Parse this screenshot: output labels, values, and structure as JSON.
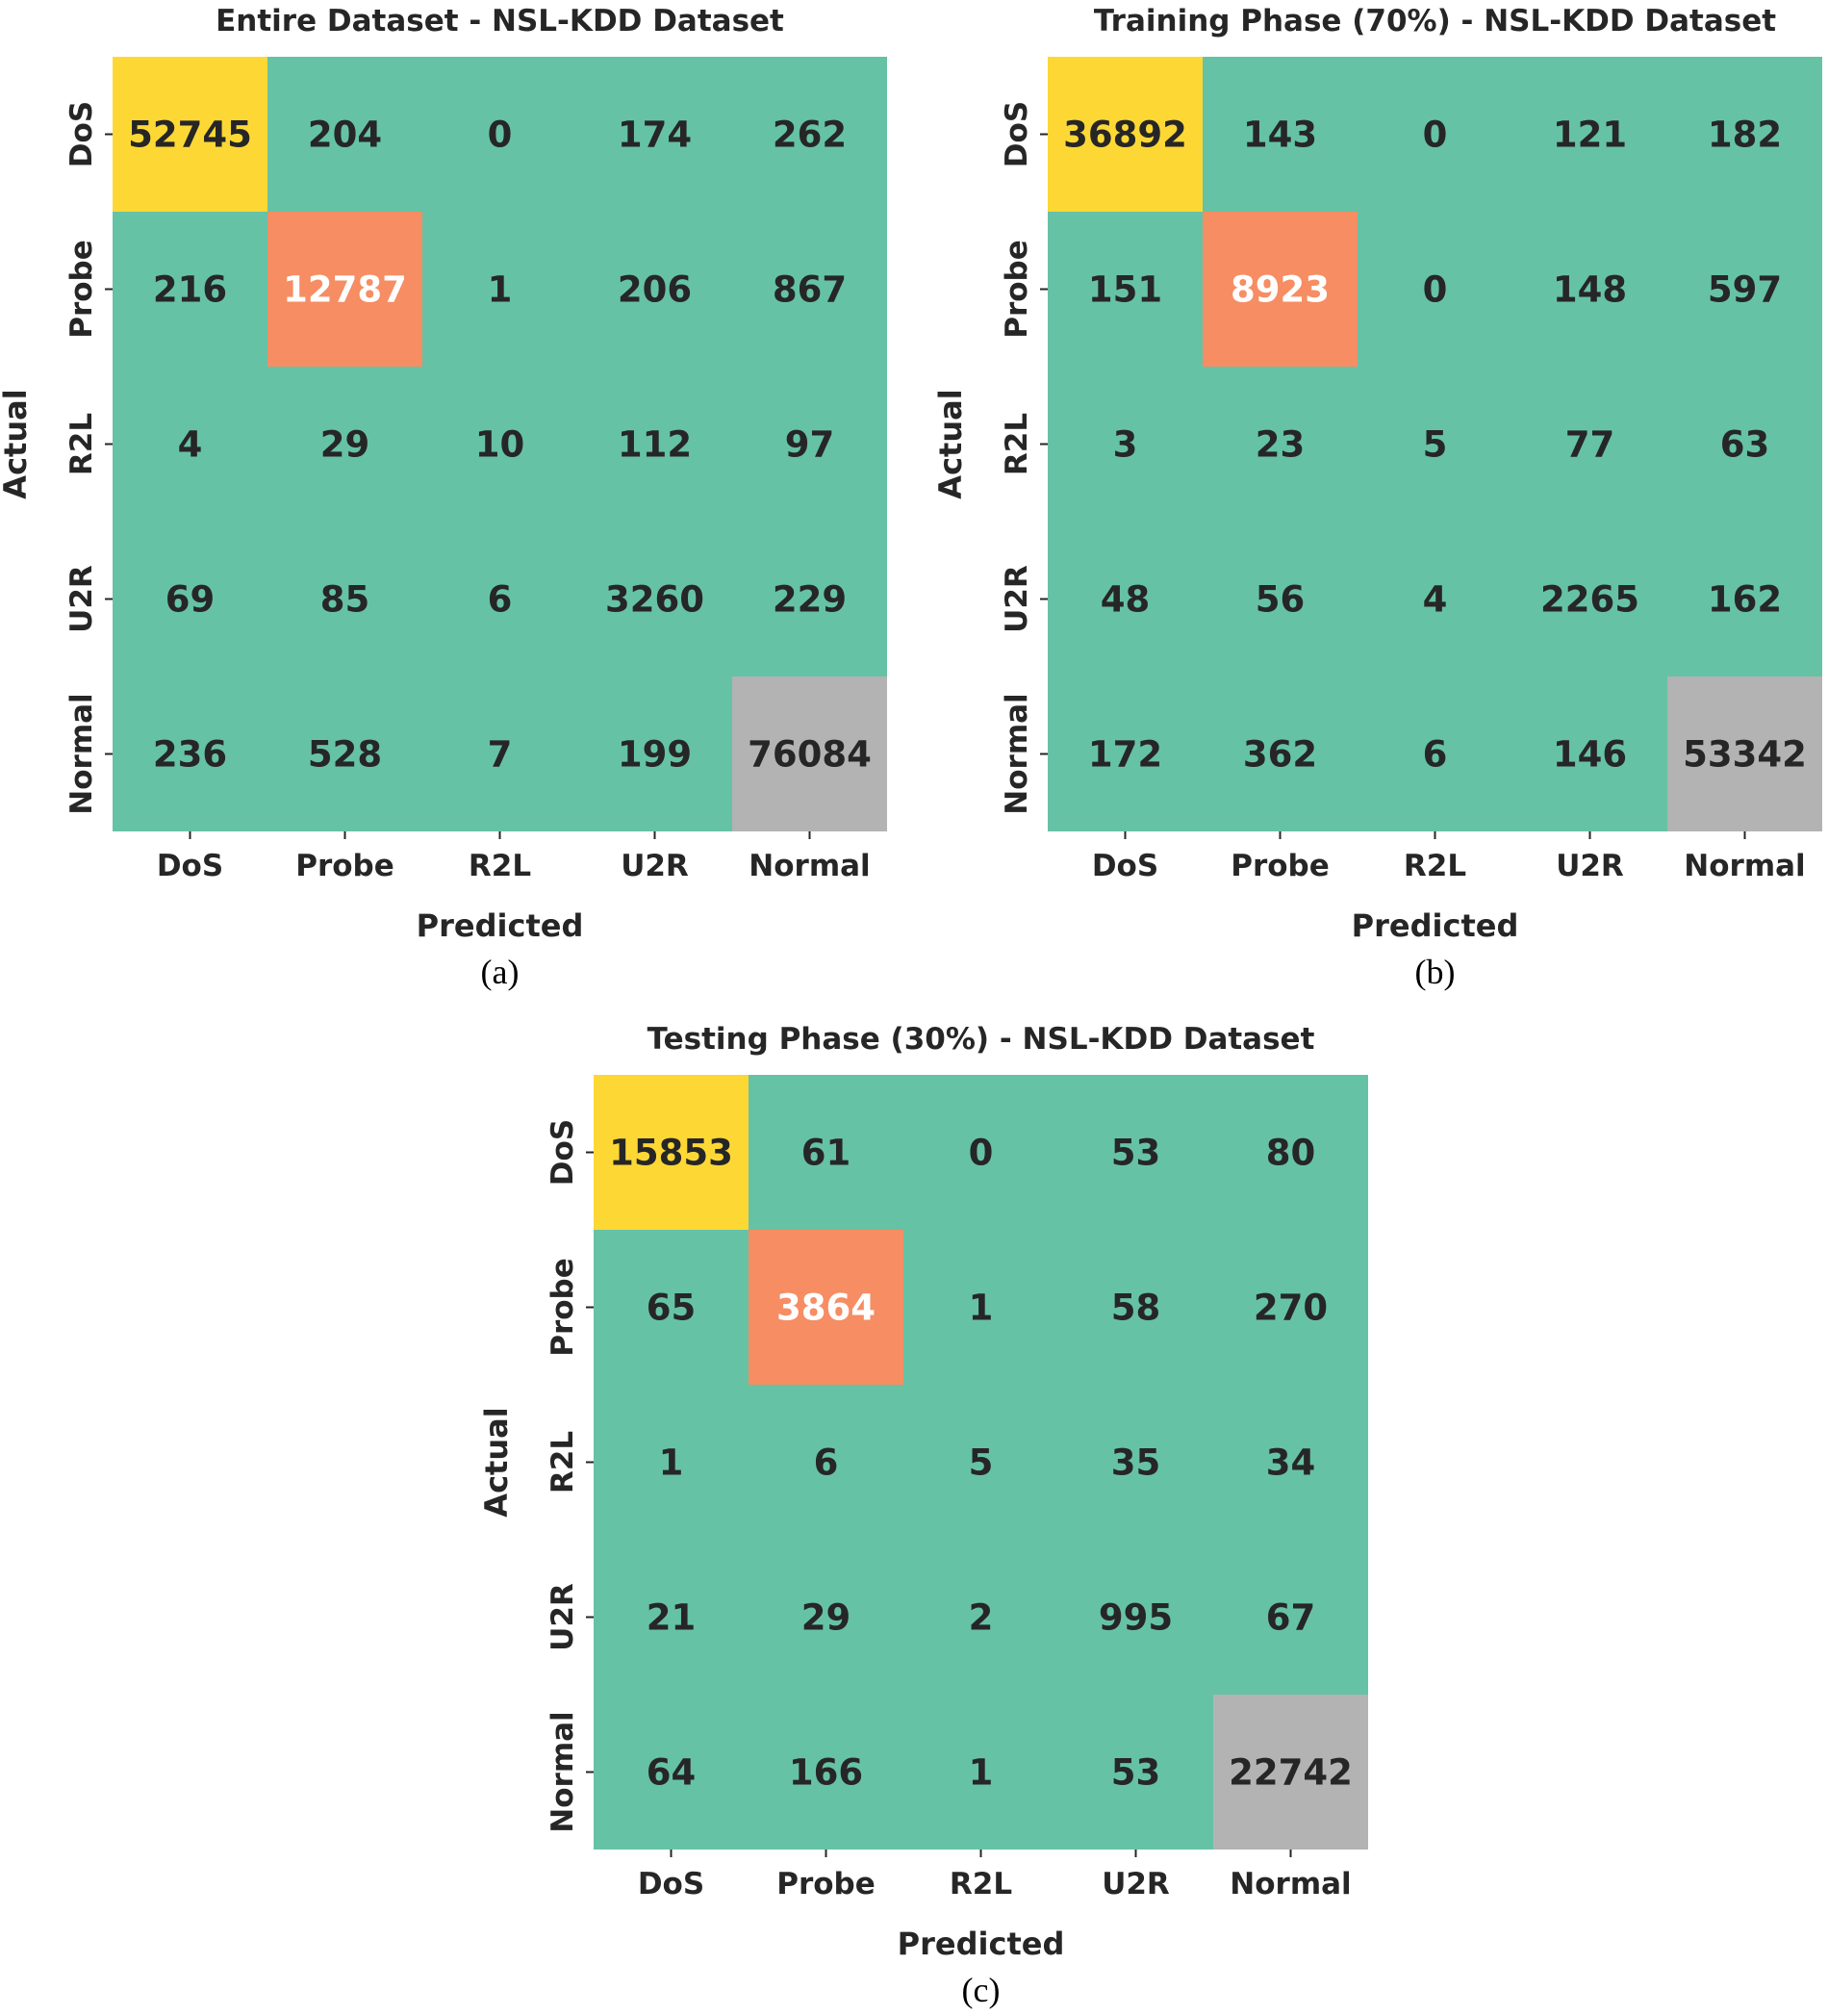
{
  "colors": {
    "correct_dos": "#FDD835",
    "correct_probe": "#F68D63",
    "correct_normal": "#B3B3B3",
    "background": "#66C2A5",
    "text_dark": "#262626",
    "text_light": "#FFFFFF"
  },
  "chart_data": [
    {
      "type": "heatmap",
      "title": "Entire Dataset - NSL-KDD Dataset",
      "caption": "(a)",
      "xlabel": "Predicted",
      "ylabel": "Actual",
      "x_categories": [
        "DoS",
        "Probe",
        "R2L",
        "U2R",
        "Normal"
      ],
      "y_categories": [
        "DoS",
        "Probe",
        "R2L",
        "U2R",
        "Normal"
      ],
      "matrix": [
        [
          52745,
          204,
          0,
          174,
          262
        ],
        [
          216,
          12787,
          1,
          206,
          867
        ],
        [
          4,
          29,
          10,
          112,
          97
        ],
        [
          69,
          85,
          6,
          3260,
          229
        ],
        [
          236,
          528,
          7,
          199,
          76084
        ]
      ]
    },
    {
      "type": "heatmap",
      "title": "Training Phase (70%) - NSL-KDD Dataset",
      "caption": "(b)",
      "xlabel": "Predicted",
      "ylabel": "Actual",
      "x_categories": [
        "DoS",
        "Probe",
        "R2L",
        "U2R",
        "Normal"
      ],
      "y_categories": [
        "DoS",
        "Probe",
        "R2L",
        "U2R",
        "Normal"
      ],
      "matrix": [
        [
          36892,
          143,
          0,
          121,
          182
        ],
        [
          151,
          8923,
          0,
          148,
          597
        ],
        [
          3,
          23,
          5,
          77,
          63
        ],
        [
          48,
          56,
          4,
          2265,
          162
        ],
        [
          172,
          362,
          6,
          146,
          53342
        ]
      ]
    },
    {
      "type": "heatmap",
      "title": "Testing Phase (30%) - NSL-KDD Dataset",
      "caption": "(c)",
      "xlabel": "Predicted",
      "ylabel": "Actual",
      "x_categories": [
        "DoS",
        "Probe",
        "R2L",
        "U2R",
        "Normal"
      ],
      "y_categories": [
        "DoS",
        "Probe",
        "R2L",
        "U2R",
        "Normal"
      ],
      "matrix": [
        [
          15853,
          61,
          0,
          53,
          80
        ],
        [
          65,
          3864,
          1,
          58,
          270
        ],
        [
          1,
          6,
          5,
          35,
          34
        ],
        [
          21,
          29,
          2,
          995,
          67
        ],
        [
          64,
          166,
          1,
          53,
          22742
        ]
      ]
    }
  ]
}
